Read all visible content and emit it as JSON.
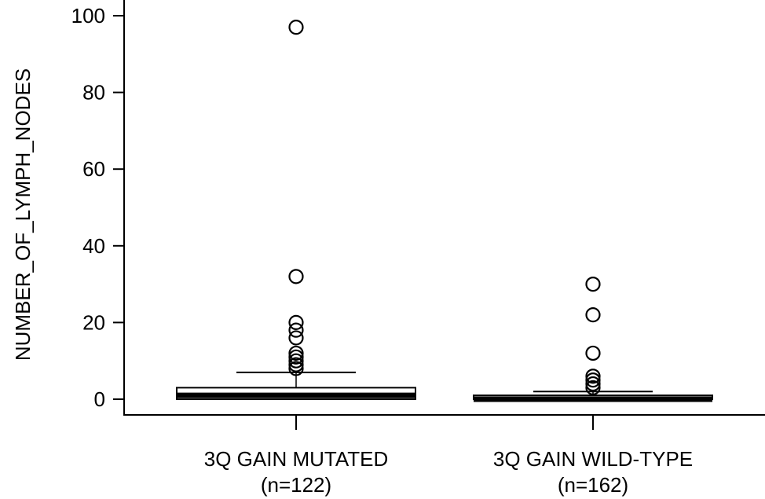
{
  "chart_data": {
    "type": "box",
    "title": "",
    "xlabel": "",
    "ylabel": "NUMBER_OF_LYMPH_NODES",
    "ylim": [
      0,
      100
    ],
    "yticks": [
      0,
      20,
      40,
      60,
      80,
      100
    ],
    "grid": false,
    "legend": "none",
    "categories": [
      {
        "label": "3Q GAIN MUTATED",
        "n_label": "(n=122)"
      },
      {
        "label": "3Q GAIN WILD-TYPE",
        "n_label": "(n=162)"
      }
    ],
    "boxes": [
      {
        "min": 0,
        "q1": 0,
        "median": 1,
        "q3": 3,
        "max": 7,
        "outliers": [
          8,
          9,
          10,
          11,
          12,
          16,
          18,
          20,
          32,
          97
        ]
      },
      {
        "min": 0,
        "q1": 0,
        "median": 0,
        "q3": 1,
        "max": 2,
        "outliers": [
          3,
          4,
          5,
          6,
          12,
          22,
          30
        ]
      }
    ]
  }
}
